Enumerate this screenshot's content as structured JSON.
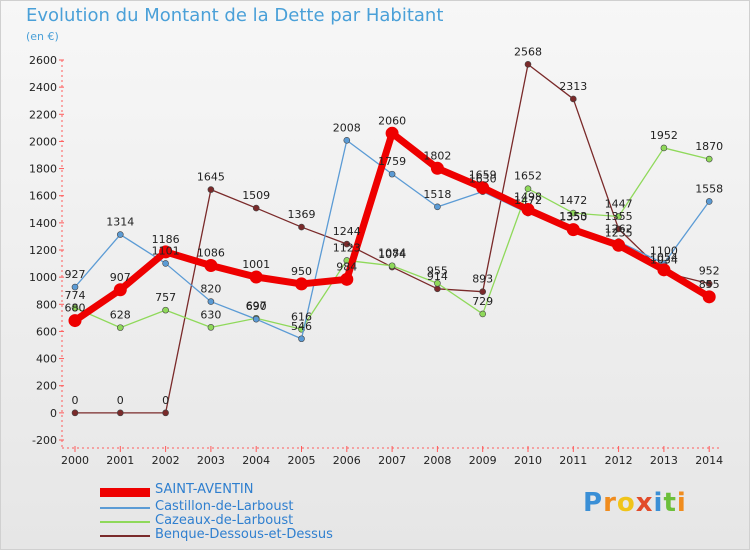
{
  "title": "Evolution du Montant de la Dette par Habitant",
  "unit_label": "(en €)",
  "logo": {
    "text": "Proxiti",
    "letters": [
      "P",
      "r",
      "o",
      "x",
      "i",
      "t",
      "i"
    ],
    "colors": [
      "#3a8fd6",
      "#f08c1e",
      "#f0c419",
      "#e24b2a",
      "#3a8fd6",
      "#6cbf3a",
      "#f08c1e"
    ]
  },
  "chart_data": {
    "type": "line",
    "categories": [
      "2000",
      "2001",
      "2002",
      "2003",
      "2004",
      "2005",
      "2006",
      "2007",
      "2008",
      "2009",
      "2010",
      "2011",
      "2012",
      "2013",
      "2014"
    ],
    "ylim": [
      -200,
      2600
    ],
    "yticks": [
      -200,
      0,
      200,
      400,
      600,
      800,
      1000,
      1200,
      1400,
      1600,
      1800,
      2000,
      2200,
      2400,
      2600
    ],
    "grid": false,
    "legend": "bottom-left",
    "series": [
      {
        "name": "SAINT-AVENTIN",
        "color": "#ee0000",
        "emphasis": true,
        "values": [
          680,
          907,
          1186,
          1086,
          1001,
          950,
          984,
          2060,
          1802,
          1659,
          1498,
          1350,
          1235,
          1054,
          855
        ],
        "labels": [
          "680",
          "907",
          "1186",
          "1086",
          "1001",
          "950",
          "984",
          "2060",
          "1802",
          "1659",
          "1498",
          "1350",
          "1235",
          "1054",
          "855"
        ]
      },
      {
        "name": "Castillon-de-Larboust",
        "color": "#5b9bd5",
        "values": [
          927,
          1314,
          1101,
          820,
          690,
          546,
          2008,
          1759,
          1518,
          1630,
          1472,
          1353,
          1262,
          1100,
          1558
        ],
        "labels": [
          "927",
          "1314",
          "1101",
          "820",
          "690",
          "546",
          "2008",
          "1759",
          "1518",
          "1630",
          "1472",
          "1353",
          "1262",
          "1100",
          "1558"
        ]
      },
      {
        "name": "Cazeaux-de-Larboust",
        "color": "#8fd95a",
        "values": [
          774,
          628,
          757,
          630,
          697,
          616,
          1123,
          1084,
          955,
          729,
          1652,
          1472,
          1447,
          1952,
          1870
        ],
        "labels": [
          "774",
          "628",
          "757",
          "630",
          "697",
          "616",
          "1123",
          "1084",
          "955",
          "729",
          "1652",
          "1472",
          "1447",
          "1952",
          "1870"
        ]
      },
      {
        "name": "Benque-Dessous-et-Dessus",
        "color": "#7a2a2a",
        "values": [
          0,
          0,
          0,
          1645,
          1509,
          1369,
          1244,
          1074,
          914,
          893,
          2568,
          2313,
          1355,
          1034,
          952
        ],
        "labels": [
          "0",
          "0",
          "0",
          "1645",
          "1509",
          "1369",
          "1244",
          "1074",
          "914",
          "893",
          "2568",
          "2313",
          "1355",
          "1034",
          "952"
        ]
      }
    ]
  }
}
